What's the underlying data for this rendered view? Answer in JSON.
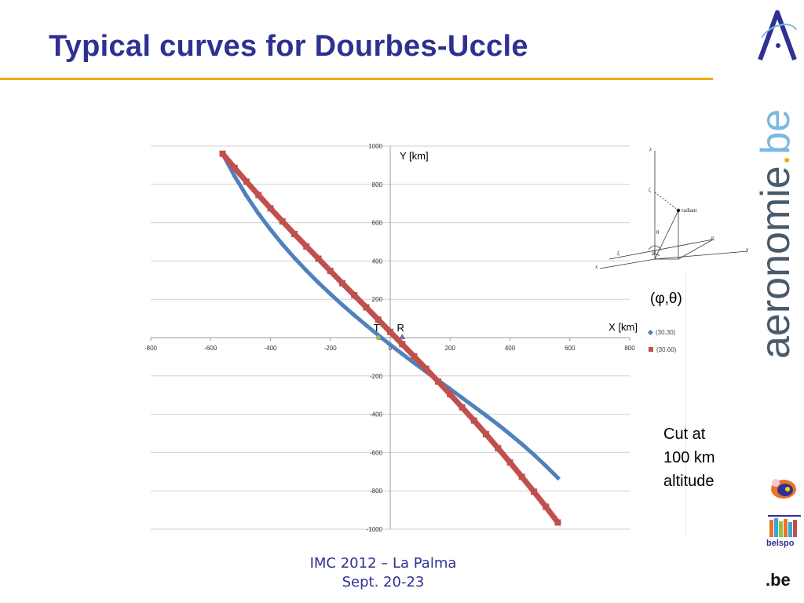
{
  "slide": {
    "title": "Typical curves for Dourbes-Uccle",
    "phi_theta": "(φ,θ)",
    "cut_note": [
      "Cut at",
      "100 km",
      "altitude"
    ],
    "footer": [
      "IMC 2012 – La Palma",
      "Sept. 20-23"
    ],
    "brand_parts": [
      "aeronomie",
      ".",
      "be"
    ],
    "belspo_label": "belspo",
    "be_logo": ".be",
    "colors": {
      "title": "#2e3192",
      "rule": "#f2a900",
      "series1": "#4f81bd",
      "series2": "#c0504d",
      "marker": "#8064a2"
    }
  },
  "diagram": {
    "labels": {
      "z": "z",
      "zeta": "ζ",
      "radiant": "radiant",
      "theta": "θ",
      "phi": "φ",
      "eta": "η",
      "y": "y",
      "xi": "ξ",
      "x": "x"
    }
  },
  "chart_data": {
    "type": "scatter",
    "xlabel": "X [km]",
    "ylabel": "Y [km]",
    "xlim": [
      -800,
      800
    ],
    "ylim": [
      -1000,
      1000
    ],
    "x_ticks": [
      -800,
      -600,
      -400,
      -200,
      0,
      200,
      400,
      600,
      800
    ],
    "y_ticks": [
      -1000,
      -800,
      -600,
      -400,
      -200,
      0,
      200,
      400,
      600,
      800,
      1000
    ],
    "grid": true,
    "legend_position": "right",
    "series": [
      {
        "name": "(30,30)",
        "marker": "diamond",
        "x": [
          -560,
          -520,
          -480,
          -440,
          -400,
          -360,
          -320,
          -280,
          -240,
          -200,
          -160,
          -120,
          -80,
          -40,
          0,
          40,
          80,
          120,
          160,
          200,
          240,
          280,
          320,
          360,
          400,
          440,
          480,
          520,
          560
        ],
        "y": [
          960,
          843,
          740,
          647,
          564,
          487,
          416,
          350,
          287,
          228,
          171,
          117,
          64,
          13,
          -37,
          -85,
          -132,
          -178,
          -223,
          -268,
          -314,
          -360,
          -406,
          -454,
          -504,
          -556,
          -611,
          -670,
          -732
        ]
      },
      {
        "name": "(30,60)",
        "marker": "square",
        "x": [
          -560,
          -520,
          -480,
          -440,
          -400,
          -360,
          -320,
          -280,
          -240,
          -200,
          -160,
          -120,
          -80,
          -40,
          0,
          40,
          80,
          120,
          160,
          200,
          240,
          280,
          320,
          360,
          400,
          440,
          480,
          520,
          560
        ],
        "y": [
          960,
          886,
          814,
          744,
          675,
          607,
          541,
          476,
          412,
          348,
          284,
          221,
          158,
          94,
          30,
          -34,
          -98,
          -163,
          -229,
          -296,
          -364,
          -433,
          -504,
          -577,
          -651,
          -727,
          -804,
          -883,
          -965
        ]
      }
    ],
    "points": [
      {
        "label": "T",
        "x": -40,
        "y": 0
      },
      {
        "label": "R",
        "x": 40,
        "y": 0
      }
    ]
  }
}
